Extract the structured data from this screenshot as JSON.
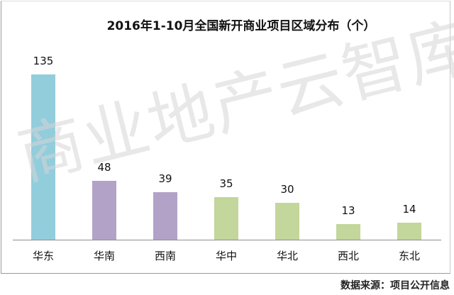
{
  "chart_data": {
    "type": "bar",
    "title": "2016年1-10月全国新开商业项目区域分布（个）",
    "categories": [
      "华东",
      "华南",
      "西南",
      "华中",
      "华北",
      "西北",
      "东北"
    ],
    "values": [
      135,
      48,
      39,
      35,
      30,
      13,
      14
    ],
    "colors": [
      "#92cddc",
      "#b3a2c7",
      "#b3a2c7",
      "#c3d69b",
      "#c3d69b",
      "#c3d69b",
      "#c3d69b"
    ],
    "xlabel": "",
    "ylabel": "",
    "data_labels": true,
    "grid": false,
    "legend": "none",
    "ylim": [
      0,
      150
    ]
  },
  "title": "2016年1-10月全国新开商业项目区域分布（个）",
  "watermark": "商业地产云智库",
  "source": "数据来源：项目公开信息",
  "bars": [
    {
      "label": "华东",
      "value": "135",
      "color": "#92cddc"
    },
    {
      "label": "华南",
      "value": "48",
      "color": "#b3a2c7"
    },
    {
      "label": "西南",
      "value": "39",
      "color": "#b3a2c7"
    },
    {
      "label": "华中",
      "value": "35",
      "color": "#c3d69b"
    },
    {
      "label": "华北",
      "value": "30",
      "color": "#c3d69b"
    },
    {
      "label": "西北",
      "value": "13",
      "color": "#c3d69b"
    },
    {
      "label": "东北",
      "value": "14",
      "color": "#c3d69b"
    }
  ]
}
